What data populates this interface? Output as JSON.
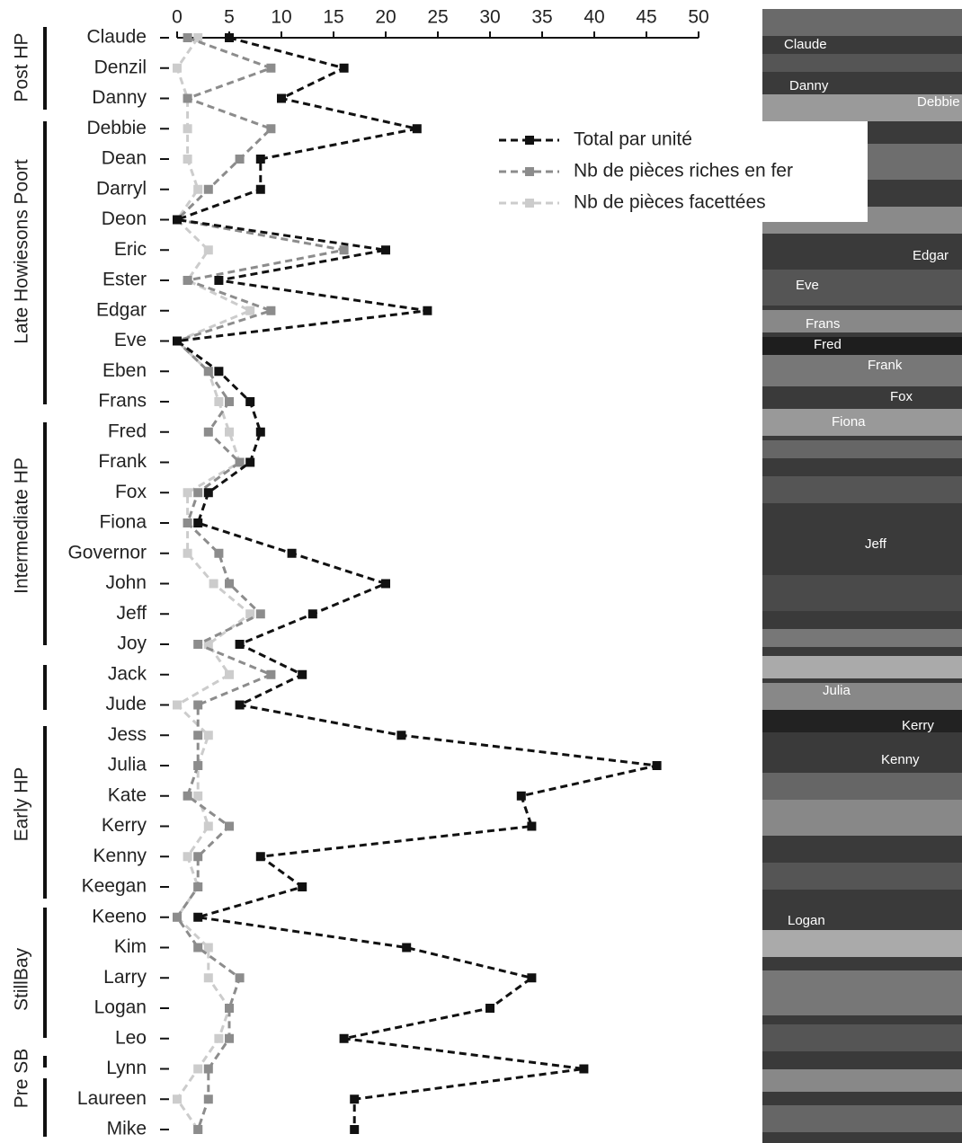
{
  "chart_data": {
    "type": "line",
    "categories": [
      "Claude",
      "Denzil",
      "Danny",
      "Debbie",
      "Dean",
      "Darryl",
      "Deon",
      "Eric",
      "Ester",
      "Edgar",
      "Eve",
      "Eben",
      "Frans",
      "Fred",
      "Frank",
      "Fox",
      "Fiona",
      "Governor",
      "John",
      "Jeff",
      "Joy",
      "Jack",
      "Jude",
      "Jess",
      "Julia",
      "Kate",
      "Kerry",
      "Kenny",
      "Keegan",
      "Keeno",
      "Kim",
      "Larry",
      "Logan",
      "Leo",
      "Lynn",
      "Laureen",
      "Mike"
    ],
    "series": [
      {
        "name": "Total par unité",
        "color": "#111111",
        "values": [
          5,
          16,
          10,
          23,
          8,
          8,
          0,
          20,
          4,
          24,
          0,
          4,
          7,
          8,
          7,
          3,
          2,
          11,
          20,
          13,
          6,
          12,
          6,
          21.5,
          46,
          33,
          34,
          8,
          12,
          2,
          22,
          34,
          30,
          16,
          39,
          17,
          17
        ]
      },
      {
        "name": "Nb de pièces riches en fer",
        "color": "#8c8c8c",
        "values": [
          1,
          9,
          1,
          9,
          6,
          3,
          0,
          16,
          1,
          9,
          0,
          3,
          5,
          3,
          6,
          2,
          1,
          4,
          5,
          8,
          2,
          9,
          2,
          2,
          2,
          1,
          5,
          2,
          2,
          0,
          2,
          6,
          5,
          5,
          3,
          3,
          2
        ]
      },
      {
        "name": "Nb de pièces facettées",
        "color": "#cccccc",
        "values": [
          2,
          0,
          1,
          1,
          1,
          2,
          0,
          3,
          1,
          7,
          0,
          3,
          4,
          5,
          6,
          1,
          1,
          1,
          3.5,
          7,
          3,
          5,
          0,
          3,
          2,
          2,
          3,
          1,
          2,
          0,
          3,
          3,
          5,
          4,
          2,
          0,
          2
        ]
      }
    ],
    "xlim": [
      0,
      50
    ],
    "xticks": [
      0,
      5,
      10,
      15,
      20,
      25,
      30,
      35,
      40,
      45,
      50
    ],
    "phases": [
      "Post HP",
      "Late Howiesons Poort",
      "Intermediate HP",
      "Early HP",
      "StillBay",
      "Pre SB"
    ],
    "section_labels": [
      "Claude",
      "Danny",
      "Debbie",
      "Edgar",
      "Eve",
      "Frans",
      "Fred",
      "Frank",
      "Fox",
      "Fiona",
      "Jeff",
      "Julia",
      "Kerry",
      "Kenny",
      "Logan"
    ]
  }
}
